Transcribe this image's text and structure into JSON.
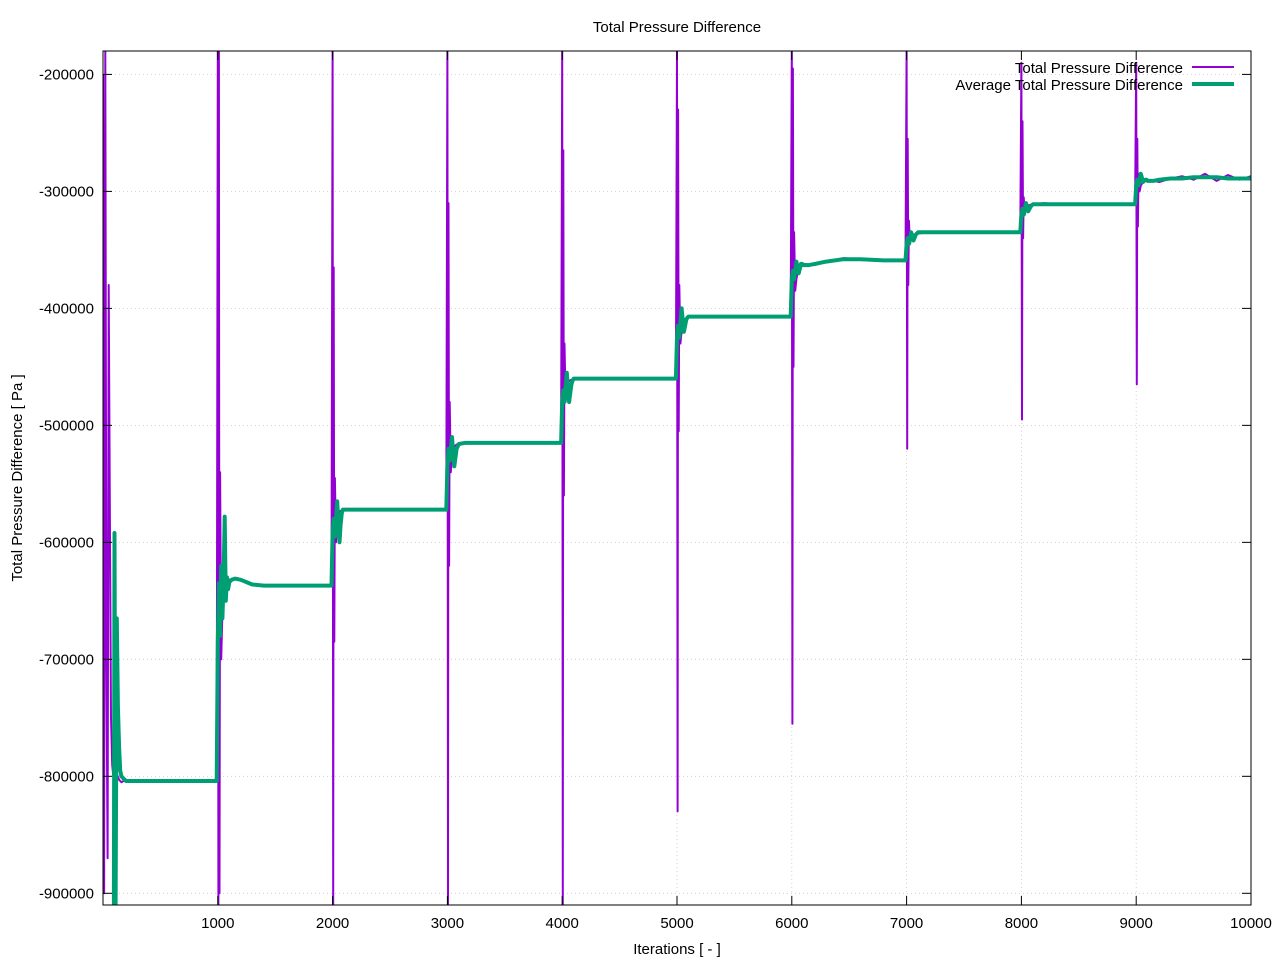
{
  "chart_data": {
    "type": "line",
    "title": "Total Pressure Difference",
    "xlabel": "Iterations [ - ]",
    "ylabel": "Total Pressure Difference [ Pa ]",
    "xlim": [
      0,
      10000
    ],
    "ylim": [
      -910000,
      -180000
    ],
    "xticks": [
      1000,
      2000,
      3000,
      4000,
      5000,
      6000,
      7000,
      8000,
      9000,
      10000
    ],
    "yticks": [
      -200000,
      -300000,
      -400000,
      -500000,
      -600000,
      -700000,
      -800000,
      -900000
    ],
    "xtick_labels": [
      "1000",
      "2000",
      "3000",
      "4000",
      "5000",
      "6000",
      "7000",
      "8000",
      "9000",
      "10000"
    ],
    "ytick_labels": [
      "-200000",
      "-300000",
      "-400000",
      "-500000",
      "-600000",
      "-700000",
      "-800000",
      "-900000"
    ],
    "grid": true,
    "legend_position": "top-right",
    "series": [
      {
        "name": "Total Pressure Difference",
        "color": "#9400d3",
        "x": [
          1,
          10,
          20,
          30,
          40,
          50,
          60,
          70,
          80,
          90,
          100,
          120,
          140,
          160,
          180,
          200,
          250,
          300,
          400,
          500,
          600,
          700,
          800,
          900,
          990,
          1000,
          1005,
          1010,
          1015,
          1020,
          1030,
          1040,
          1050,
          1060,
          1080,
          1100,
          1150,
          1200,
          1250,
          1300,
          1400,
          1500,
          1700,
          1900,
          1990,
          2000,
          2005,
          2010,
          2015,
          2020,
          2030,
          2040,
          2050,
          2070,
          2100,
          2150,
          2200,
          2300,
          2500,
          2700,
          2990,
          3000,
          3005,
          3010,
          3015,
          3020,
          3030,
          3040,
          3060,
          3100,
          3150,
          3200,
          3400,
          3700,
          3990,
          4000,
          4005,
          4010,
          4015,
          4020,
          4030,
          4040,
          4060,
          4100,
          4150,
          4200,
          4400,
          4700,
          4990,
          5000,
          5005,
          5010,
          5015,
          5020,
          5030,
          5040,
          5060,
          5100,
          5150,
          5200,
          5400,
          5700,
          5990,
          6000,
          6005,
          6010,
          6015,
          6020,
          6030,
          6040,
          6060,
          6100,
          6200,
          6300,
          6450,
          6600,
          6800,
          6990,
          7000,
          7005,
          7010,
          7015,
          7020,
          7030,
          7040,
          7060,
          7100,
          7200,
          7300,
          7500,
          7700,
          7990,
          8000,
          8005,
          8010,
          8015,
          8020,
          8030,
          8040,
          8060,
          8100,
          8200,
          8300,
          8500,
          8700,
          8990,
          9000,
          9005,
          9010,
          9015,
          9020,
          9030,
          9040,
          9060,
          9100,
          9150,
          9200,
          9300,
          9400,
          9500,
          9600,
          9700,
          9800,
          9900,
          10000
        ],
        "y": [
          -200000,
          -900000,
          -180000,
          -700000,
          -870000,
          -380000,
          -580000,
          -750000,
          -790000,
          -800000,
          -802000,
          -798000,
          -803000,
          -805000,
          -804000,
          -803000,
          -804000,
          -804000,
          -804000,
          -804000,
          -804000,
          -804000,
          -804000,
          -804000,
          -804000,
          -180000,
          -910000,
          -180000,
          -900000,
          -540000,
          -700000,
          -660000,
          -640000,
          -632000,
          -631000,
          -632000,
          -631000,
          -632000,
          -634000,
          -636000,
          -637000,
          -637000,
          -637000,
          -637000,
          -637000,
          -180000,
          -910000,
          -365000,
          -685000,
          -545000,
          -600000,
          -585000,
          -575000,
          -573000,
          -572000,
          -572000,
          -572000,
          -572000,
          -572000,
          -572000,
          -572000,
          -180000,
          -910000,
          -310000,
          -620000,
          -480000,
          -540000,
          -525000,
          -518000,
          -515000,
          -515000,
          -515000,
          -515000,
          -515000,
          -515000,
          -180000,
          -910000,
          -265000,
          -560000,
          -430000,
          -480000,
          -470000,
          -462000,
          -460000,
          -460000,
          -460000,
          -460000,
          -460000,
          -460000,
          -180000,
          -830000,
          -230000,
          -505000,
          -380000,
          -430000,
          -420000,
          -410000,
          -407000,
          -407000,
          -407000,
          -407000,
          -407000,
          -407000,
          -180000,
          -755000,
          -195000,
          -450000,
          -335000,
          -385000,
          -375000,
          -365000,
          -362000,
          -363000,
          -360000,
          -357000,
          -358000,
          -359000,
          -359000,
          -180000,
          -520000,
          -255000,
          -380000,
          -325000,
          -345000,
          -340000,
          -337000,
          -336000,
          -335000,
          -335000,
          -335000,
          -335000,
          -335000,
          -190000,
          -495000,
          -240000,
          -340000,
          -305000,
          -320000,
          -315000,
          -312000,
          -311000,
          -310000,
          -311000,
          -311000,
          -311000,
          -311000,
          -190000,
          -465000,
          -255000,
          -330000,
          -285000,
          -300000,
          -295000,
          -292000,
          -290000,
          -291000,
          -292000,
          -289000,
          -287000,
          -290000,
          -285000,
          -291000,
          -286000,
          -290000,
          -287000
        ]
      },
      {
        "name": "Average Total Pressure Difference",
        "color": "#009e73",
        "x": [
          95,
          100,
          110,
          120,
          130,
          140,
          150,
          160,
          180,
          200,
          250,
          300,
          400,
          600,
          800,
          990,
          1000,
          1010,
          1020,
          1030,
          1040,
          1050,
          1060,
          1070,
          1080,
          1090,
          1100,
          1120,
          1150,
          1200,
          1250,
          1300,
          1400,
          1600,
          1800,
          1990,
          2000,
          2010,
          2020,
          2040,
          2060,
          2070,
          2080,
          2090,
          2100,
          2150,
          2200,
          2400,
          2700,
          2990,
          3000,
          3010,
          3020,
          3040,
          3060,
          3080,
          3090,
          3100,
          3150,
          3200,
          3500,
          3990,
          4000,
          4010,
          4020,
          4040,
          4060,
          4080,
          4090,
          4100,
          4150,
          4200,
          4500,
          4990,
          5000,
          5010,
          5020,
          5040,
          5060,
          5080,
          5090,
          5100,
          5150,
          5200,
          5500,
          5990,
          6000,
          6010,
          6020,
          6040,
          6060,
          6080,
          6090,
          6100,
          6150,
          6200,
          6300,
          6450,
          6600,
          6800,
          6990,
          7000,
          7010,
          7020,
          7040,
          7060,
          7080,
          7090,
          7100,
          7150,
          7200,
          7300,
          7500,
          7990,
          8000,
          8010,
          8020,
          8040,
          8060,
          8080,
          8090,
          8100,
          8150,
          8200,
          8300,
          8500,
          8990,
          9000,
          9010,
          9020,
          9040,
          9060,
          9080,
          9090,
          9100,
          9150,
          9200,
          9300,
          9400,
          9500,
          9600,
          9700,
          9800,
          9900,
          10000
        ],
        "y": [
          -910000,
          -592000,
          -910000,
          -665000,
          -740000,
          -775000,
          -795000,
          -800000,
          -802000,
          -804000,
          -804000,
          -804000,
          -804000,
          -804000,
          -804000,
          -804000,
          -685000,
          -635000,
          -680000,
          -620000,
          -665000,
          -635000,
          -578000,
          -650000,
          -630000,
          -640000,
          -634000,
          -632000,
          -631000,
          -632000,
          -634000,
          -636000,
          -637000,
          -637000,
          -637000,
          -637000,
          -592000,
          -580000,
          -595000,
          -565000,
          -600000,
          -585000,
          -575000,
          -572000,
          -572000,
          -572000,
          -572000,
          -572000,
          -572000,
          -572000,
          -535000,
          -520000,
          -530000,
          -510000,
          -535000,
          -520000,
          -518000,
          -516000,
          -515000,
          -515000,
          -515000,
          -515000,
          -480000,
          -470000,
          -480000,
          -455000,
          -480000,
          -465000,
          -462000,
          -460000,
          -460000,
          -460000,
          -460000,
          -460000,
          -425000,
          -415000,
          -425000,
          -400000,
          -420000,
          -410000,
          -408000,
          -407000,
          -407000,
          -407000,
          -407000,
          -407000,
          -375000,
          -368000,
          -375000,
          -360000,
          -370000,
          -362000,
          -362000,
          -363000,
          -363000,
          -362000,
          -360000,
          -358000,
          -358000,
          -359000,
          -359000,
          -345000,
          -340000,
          -345000,
          -335000,
          -342000,
          -337000,
          -336000,
          -335000,
          -335000,
          -335000,
          -335000,
          -335000,
          -335000,
          -320000,
          -315000,
          -320000,
          -310000,
          -317000,
          -313000,
          -312000,
          -311000,
          -311000,
          -311000,
          -311000,
          -311000,
          -311000,
          -295000,
          -290000,
          -295000,
          -285000,
          -292000,
          -290000,
          -290000,
          -291000,
          -291000,
          -290000,
          -289000,
          -289000,
          -288000,
          -288000,
          -288000,
          -289000,
          -289000,
          -289000
        ]
      }
    ]
  }
}
